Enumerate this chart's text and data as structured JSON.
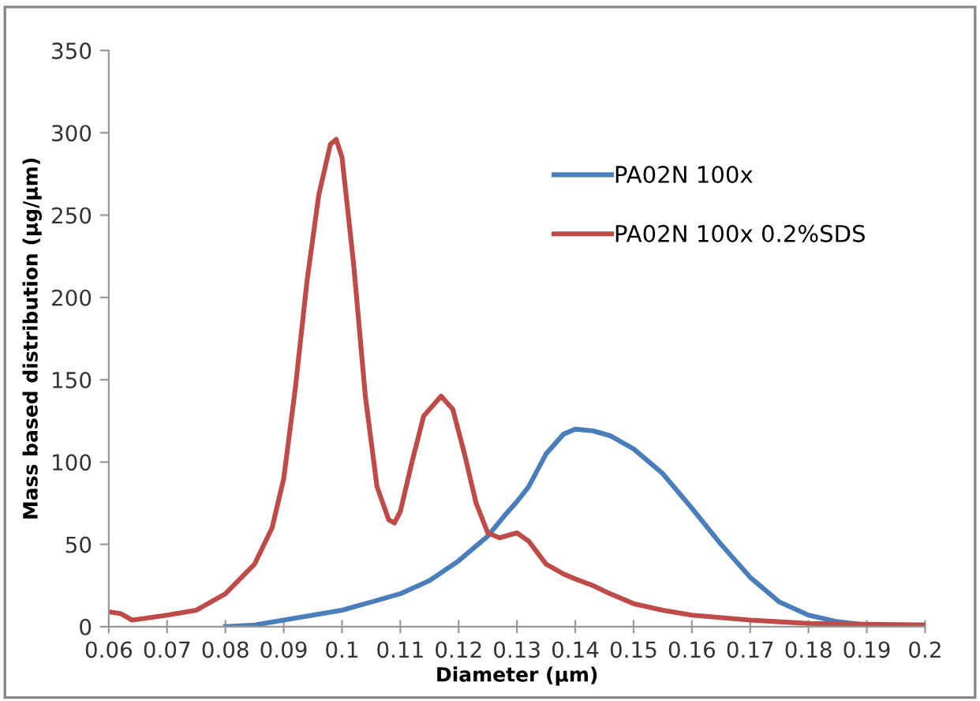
{
  "chart_data": {
    "type": "line",
    "xlabel": "Diameter (µm)",
    "ylabel": "Mass based distribution (µg/µm)",
    "xlim": [
      0.06,
      0.2
    ],
    "xticks": [
      0.06,
      0.07,
      0.08,
      0.09,
      0.1,
      0.11,
      0.12,
      0.13,
      0.14,
      0.15,
      0.16,
      0.17,
      0.18,
      0.19,
      0.2
    ],
    "ylim": [
      0,
      350
    ],
    "yticks": [
      0,
      50,
      100,
      150,
      200,
      250,
      300,
      350
    ],
    "grid": false,
    "legend": "right",
    "marker": "none",
    "line_style": "solid",
    "series": [
      {
        "name": "PA02N 100x",
        "color": "#4a7ebb",
        "x": [
          0.08,
          0.085,
          0.09,
          0.095,
          0.1,
          0.105,
          0.11,
          0.115,
          0.12,
          0.125,
          0.128,
          0.13,
          0.132,
          0.135,
          0.138,
          0.14,
          0.143,
          0.146,
          0.15,
          0.155,
          0.16,
          0.165,
          0.17,
          0.175,
          0.18,
          0.185,
          0.19,
          0.2
        ],
        "values": [
          0,
          1,
          4,
          7,
          10,
          15,
          20,
          28,
          40,
          55,
          68,
          76,
          85,
          105,
          117,
          120,
          119,
          116,
          108,
          93,
          72,
          50,
          30,
          15,
          7,
          3,
          1,
          1
        ]
      },
      {
        "name": "PA02N 100x 0.2%SDS",
        "color": "#be4b48",
        "x": [
          0.06,
          0.062,
          0.064,
          0.066,
          0.07,
          0.075,
          0.08,
          0.085,
          0.088,
          0.09,
          0.092,
          0.094,
          0.096,
          0.098,
          0.099,
          0.1,
          0.102,
          0.104,
          0.106,
          0.108,
          0.109,
          0.11,
          0.112,
          0.114,
          0.117,
          0.119,
          0.121,
          0.123,
          0.125,
          0.127,
          0.13,
          0.132,
          0.135,
          0.138,
          0.14,
          0.143,
          0.146,
          0.15,
          0.155,
          0.16,
          0.17,
          0.18,
          0.19,
          0.2
        ],
        "values": [
          9,
          8,
          4,
          5,
          7,
          10,
          20,
          38,
          60,
          90,
          145,
          210,
          262,
          293,
          296,
          285,
          220,
          140,
          85,
          65,
          63,
          70,
          100,
          128,
          140,
          132,
          105,
          75,
          57,
          54,
          57,
          52,
          38,
          32,
          29,
          25,
          20,
          14,
          10,
          7,
          4,
          2,
          1.5,
          1
        ]
      }
    ]
  }
}
